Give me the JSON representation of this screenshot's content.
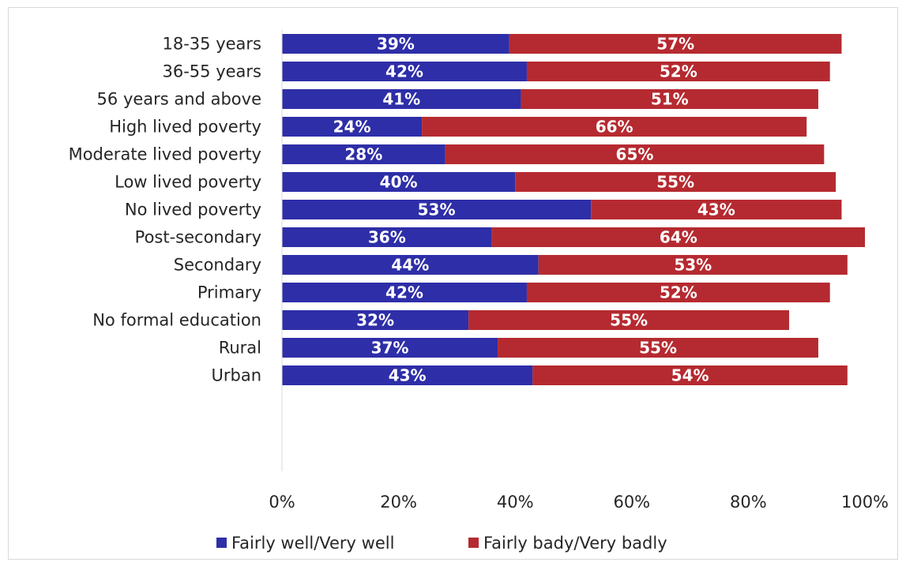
{
  "chart_data": {
    "type": "bar",
    "orientation": "horizontal",
    "stacked": true,
    "categories": [
      "18-35 years",
      "36-55 years",
      "56 years and above",
      "High lived poverty",
      "Moderate lived poverty",
      "Low lived poverty",
      "No lived poverty",
      "Post-secondary",
      "Secondary",
      "Primary",
      "No formal education",
      "Rural",
      "Urban"
    ],
    "groups": [
      [
        "18-35 years",
        "36-55 years",
        "56 years and above"
      ],
      [
        "High lived poverty",
        "Moderate lived poverty",
        "Low lived poverty",
        "No lived poverty"
      ],
      [
        "Post-secondary",
        "Secondary",
        "Primary",
        "No formal education"
      ],
      [
        "Rural",
        "Urban"
      ]
    ],
    "series": [
      {
        "name": "Fairly well/Very well",
        "color": "#2e2ea8",
        "values": [
          39,
          42,
          41,
          24,
          28,
          40,
          53,
          36,
          44,
          42,
          32,
          37,
          43
        ]
      },
      {
        "name": "Fairly bady/Very badly",
        "color": "#b52a30",
        "values": [
          57,
          52,
          51,
          66,
          65,
          55,
          43,
          64,
          53,
          52,
          55,
          55,
          54
        ]
      }
    ],
    "data_labels": [
      [
        "39%",
        "42%",
        "41%",
        "24%",
        "28%",
        "40%",
        "53%",
        "36%",
        "44%",
        "42%",
        "32%",
        "37%",
        "43%"
      ],
      [
        "57%",
        "52%",
        "51%",
        "66%",
        "65%",
        "55%",
        "43%",
        "64%",
        "53%",
        "52%",
        "55%",
        "55%",
        "54%"
      ]
    ],
    "x_ticks": [
      "0%",
      "20%",
      "40%",
      "60%",
      "80%",
      "100%"
    ],
    "xlim": [
      0,
      100
    ],
    "title": "",
    "xlabel": "",
    "ylabel": "",
    "grid": false,
    "legend_position": "bottom"
  }
}
